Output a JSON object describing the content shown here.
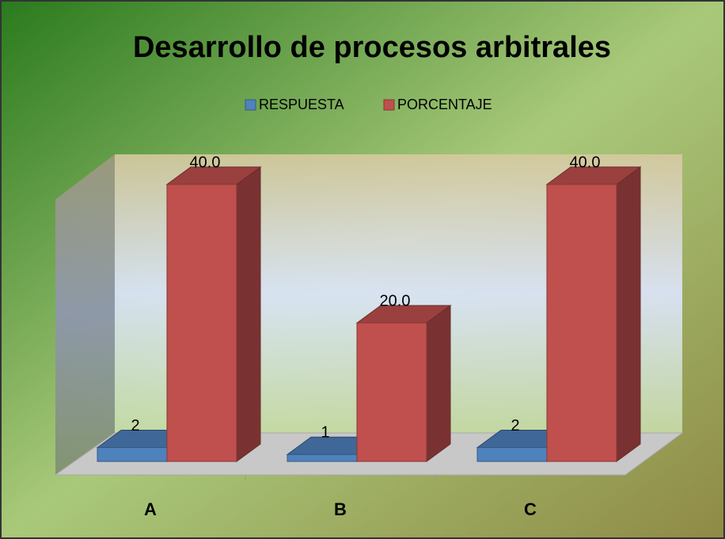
{
  "chart_data": {
    "type": "bar3d",
    "title": "Desarrollo de procesos arbitrales",
    "categories": [
      "A",
      "B",
      "C"
    ],
    "series": [
      {
        "name": "RESPUESTA",
        "color": "#4f81bd",
        "values": [
          2,
          1,
          2
        ]
      },
      {
        "name": "PORCENTAJE",
        "color": "#c0504d",
        "values": [
          40,
          20,
          40
        ],
        "value_labels": [
          "40.0",
          "20.0",
          "40.0"
        ]
      }
    ],
    "legend": "top"
  }
}
